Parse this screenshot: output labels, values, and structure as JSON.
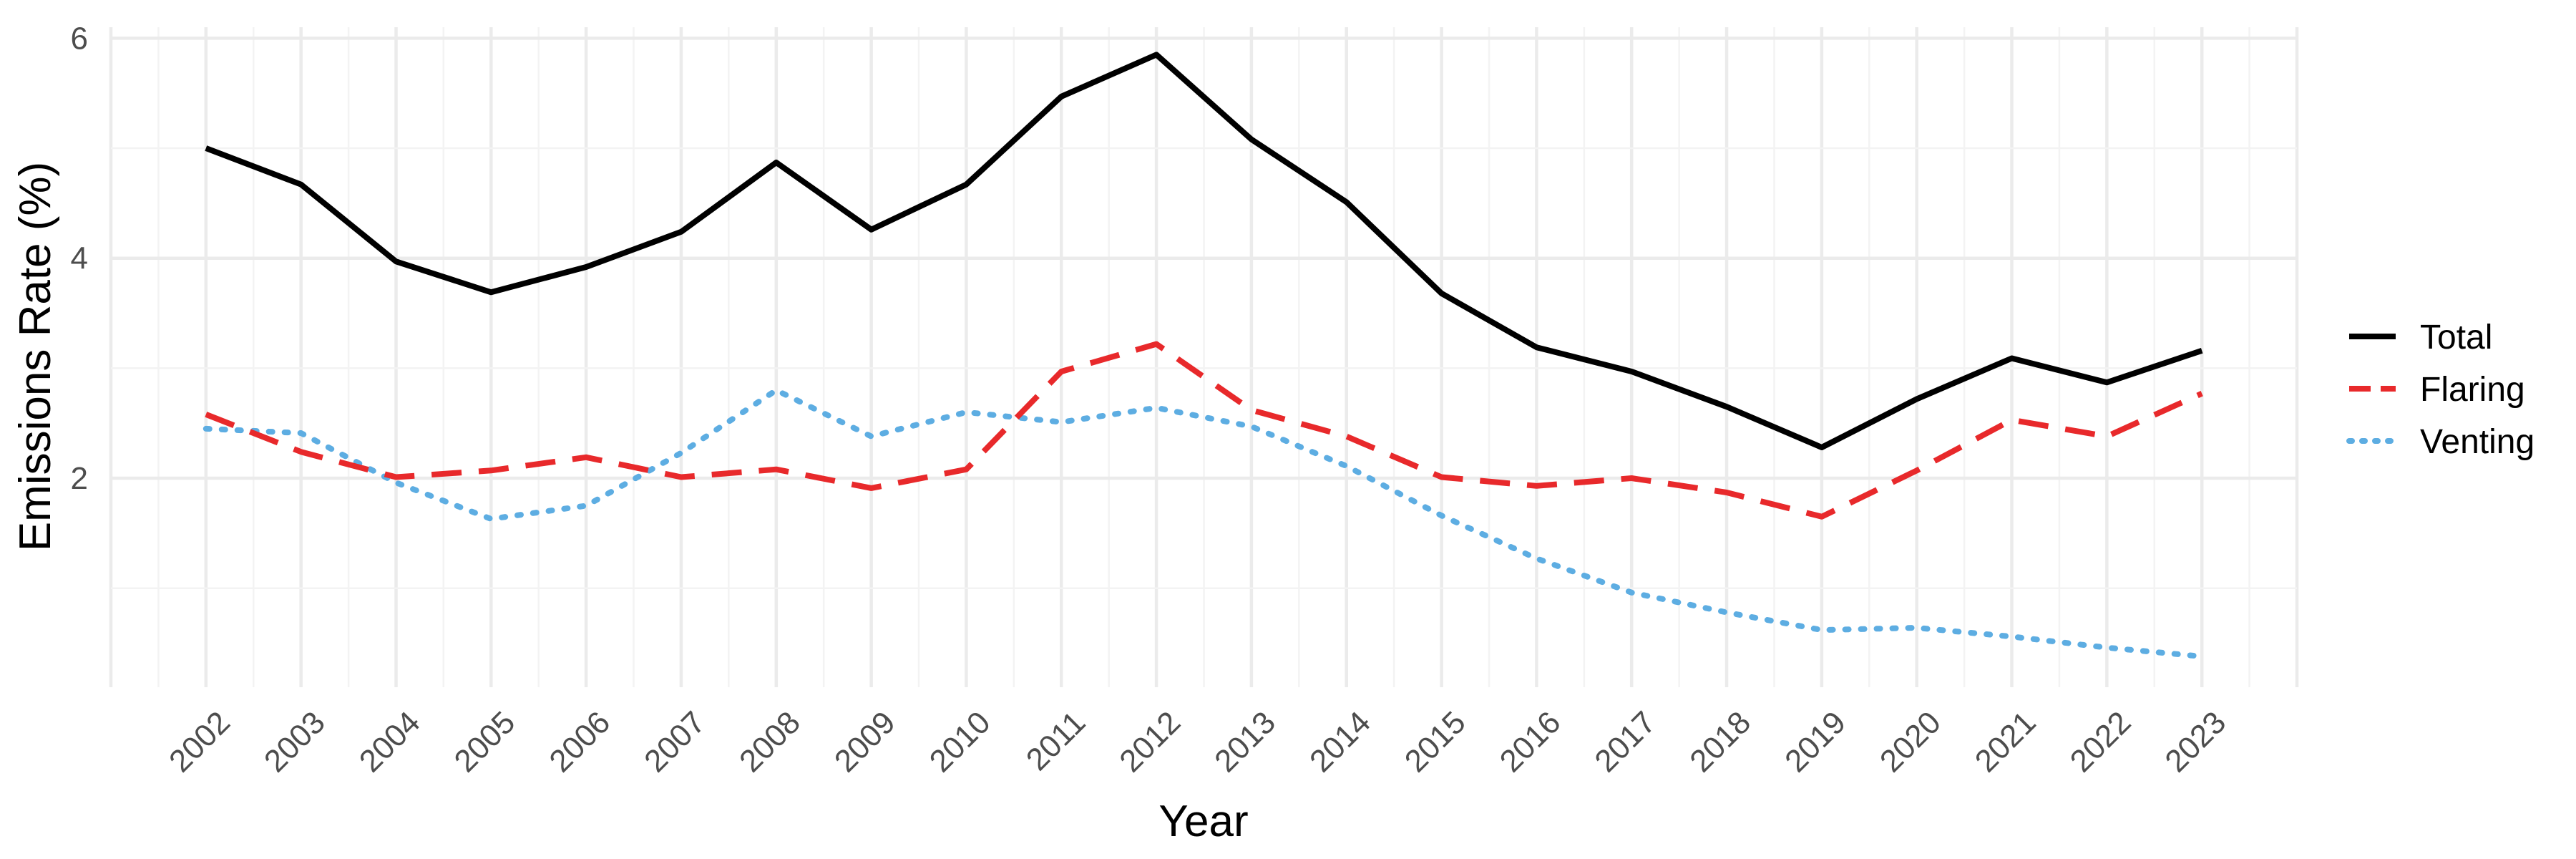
{
  "chart_data": {
    "type": "line",
    "title": "",
    "xlabel": "Year",
    "ylabel": "Emissions Rate (%)",
    "x": [
      2002,
      2003,
      2004,
      2005,
      2006,
      2007,
      2008,
      2009,
      2010,
      2011,
      2012,
      2013,
      2014,
      2015,
      2016,
      2017,
      2018,
      2019,
      2020,
      2021,
      2022,
      2023
    ],
    "x_tick_labels": [
      "2002",
      "2003",
      "2004",
      "2005",
      "2006",
      "2007",
      "2008",
      "2009",
      "2010",
      "2011",
      "2012",
      "2013",
      "2014",
      "2015",
      "2016",
      "2017",
      "2018",
      "2019",
      "2020",
      "2021",
      "2022",
      "2023"
    ],
    "y_ticks": [
      2,
      4,
      6
    ],
    "y_tick_labels": [
      "2",
      "4",
      "6"
    ],
    "xlim": [
      2001,
      2024
    ],
    "ylim": [
      0.1,
      6.1
    ],
    "grid": true,
    "legend_position": "right",
    "series": [
      {
        "name": "Total",
        "color": "#000000",
        "linestyle": "solid",
        "values": [
          5.0,
          4.67,
          3.97,
          3.69,
          3.92,
          4.24,
          4.87,
          4.26,
          4.67,
          5.47,
          5.85,
          5.08,
          4.51,
          3.68,
          3.19,
          2.97,
          2.65,
          2.28,
          2.72,
          3.09,
          2.87,
          3.16
        ]
      },
      {
        "name": "Flaring",
        "color": "#e8292b",
        "linestyle": "dashed",
        "values": [
          2.58,
          2.24,
          2.01,
          2.07,
          2.19,
          2.01,
          2.08,
          1.91,
          2.08,
          2.97,
          3.22,
          2.62,
          2.38,
          2.01,
          1.93,
          2.0,
          1.87,
          1.65,
          2.07,
          2.53,
          2.38,
          2.77
        ]
      },
      {
        "name": "Venting",
        "color": "#5dade2",
        "linestyle": "dotted",
        "values": [
          2.45,
          2.41,
          1.96,
          1.63,
          1.75,
          2.23,
          2.8,
          2.38,
          2.6,
          2.51,
          2.64,
          2.47,
          2.11,
          1.66,
          1.27,
          0.96,
          0.78,
          0.62,
          0.64,
          0.56,
          0.46,
          0.38
        ]
      }
    ]
  }
}
